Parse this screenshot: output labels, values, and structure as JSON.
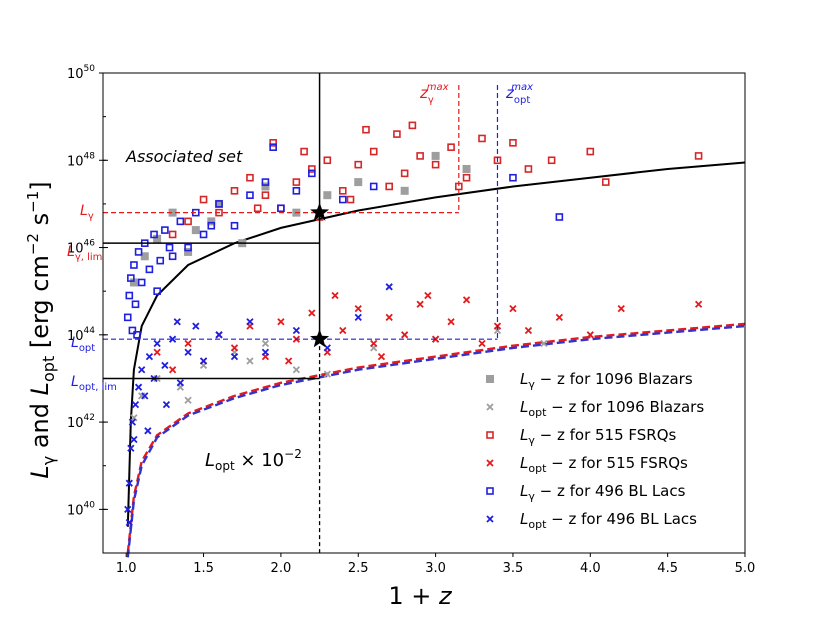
{
  "chart_data": {
    "type": "scatter",
    "title": "",
    "panel_label": "Associated set",
    "xlabel": "1 + z",
    "ylabel": "L_γ and L_opt [erg cm^-2 s^-1]",
    "xlim": [
      0.85,
      5.0
    ],
    "ylim_log10": [
      39.0,
      50.0
    ],
    "x_ticks": [
      "1.0",
      "1.5",
      "2.0",
      "2.5",
      "3.0",
      "3.5",
      "4.0",
      "4.5",
      "5.0"
    ],
    "y_ticks": [
      "10^40",
      "10^42",
      "10^44",
      "10^46",
      "10^48",
      "10^50"
    ],
    "legend_position": "lower-right",
    "legend": [
      "L_γ − z for 1096 Blazars",
      "L_opt − z for 1096 Blazars",
      "L_γ − z for 515 FSRQs",
      "L_opt − z for 515 FSRQs",
      "L_γ − z for 496 BL Lacs",
      "L_opt − z for 496 BL Lacs"
    ],
    "series": [
      {
        "name": "L_γ − z for 1096 Blazars",
        "marker": "square-filled",
        "color": "#9e9e9e",
        "points": [
          [
            1.05,
            45.2
          ],
          [
            1.12,
            45.8
          ],
          [
            1.2,
            46.2
          ],
          [
            1.3,
            46.8
          ],
          [
            1.45,
            46.4
          ],
          [
            1.6,
            47.0
          ],
          [
            1.75,
            46.1
          ],
          [
            1.9,
            47.4
          ],
          [
            2.1,
            46.8
          ],
          [
            2.3,
            47.2
          ],
          [
            2.5,
            47.5
          ],
          [
            2.8,
            47.3
          ],
          [
            3.0,
            48.1
          ],
          [
            3.2,
            47.8
          ],
          [
            1.4,
            45.9
          ],
          [
            1.55,
            46.6
          ]
        ]
      },
      {
        "name": "L_opt − z for 1096 Blazars",
        "marker": "x",
        "color": "#9e9e9e",
        "points": [
          [
            1.05,
            42.1
          ],
          [
            1.1,
            42.6
          ],
          [
            1.2,
            43.0
          ],
          [
            1.35,
            42.8
          ],
          [
            1.5,
            43.3
          ],
          [
            1.7,
            43.6
          ],
          [
            1.9,
            43.8
          ],
          [
            2.1,
            43.2
          ],
          [
            2.3,
            43.1
          ],
          [
            2.6,
            43.7
          ],
          [
            3.0,
            43.9
          ],
          [
            3.4,
            44.1
          ],
          [
            3.7,
            43.8
          ],
          [
            1.4,
            42.5
          ],
          [
            1.8,
            43.4
          ]
        ]
      },
      {
        "name": "L_γ − z for 515 FSRQs",
        "marker": "square-open",
        "color": "#d62728",
        "points": [
          [
            1.3,
            46.3
          ],
          [
            1.4,
            46.6
          ],
          [
            1.5,
            47.1
          ],
          [
            1.6,
            46.8
          ],
          [
            1.7,
            47.3
          ],
          [
            1.8,
            47.6
          ],
          [
            1.9,
            47.2
          ],
          [
            1.95,
            48.4
          ],
          [
            2.0,
            46.9
          ],
          [
            2.1,
            47.5
          ],
          [
            2.2,
            47.8
          ],
          [
            2.25,
            46.7
          ],
          [
            2.3,
            48.0
          ],
          [
            2.4,
            47.3
          ],
          [
            2.5,
            47.9
          ],
          [
            2.6,
            48.2
          ],
          [
            2.7,
            47.4
          ],
          [
            2.75,
            48.6
          ],
          [
            2.8,
            47.7
          ],
          [
            2.9,
            48.1
          ],
          [
            3.0,
            47.9
          ],
          [
            3.1,
            48.3
          ],
          [
            3.2,
            47.6
          ],
          [
            3.3,
            48.5
          ],
          [
            3.4,
            48.0
          ],
          [
            3.5,
            48.4
          ],
          [
            3.6,
            47.8
          ],
          [
            3.75,
            48.0
          ],
          [
            4.0,
            48.2
          ],
          [
            4.1,
            47.5
          ],
          [
            4.7,
            48.1
          ],
          [
            2.15,
            48.2
          ],
          [
            1.85,
            46.9
          ],
          [
            2.45,
            47.1
          ],
          [
            2.55,
            48.7
          ],
          [
            2.85,
            48.8
          ],
          [
            3.15,
            47.4
          ]
        ]
      },
      {
        "name": "L_opt − z for 515 FSRQs",
        "marker": "x",
        "color": "#e41a1c",
        "points": [
          [
            1.2,
            43.6
          ],
          [
            1.3,
            43.2
          ],
          [
            1.4,
            43.8
          ],
          [
            1.5,
            43.4
          ],
          [
            1.6,
            44.0
          ],
          [
            1.7,
            43.7
          ],
          [
            1.8,
            44.2
          ],
          [
            1.9,
            43.5
          ],
          [
            2.0,
            44.3
          ],
          [
            2.1,
            43.9
          ],
          [
            2.2,
            44.5
          ],
          [
            2.3,
            43.6
          ],
          [
            2.4,
            44.1
          ],
          [
            2.5,
            44.6
          ],
          [
            2.6,
            43.8
          ],
          [
            2.7,
            44.4
          ],
          [
            2.8,
            44.0
          ],
          [
            2.9,
            44.7
          ],
          [
            3.0,
            43.9
          ],
          [
            3.1,
            44.3
          ],
          [
            3.2,
            44.8
          ],
          [
            3.3,
            43.8
          ],
          [
            3.4,
            44.2
          ],
          [
            3.5,
            44.6
          ],
          [
            3.6,
            44.1
          ],
          [
            3.8,
            44.4
          ],
          [
            4.0,
            44.0
          ],
          [
            4.2,
            44.6
          ],
          [
            4.7,
            44.7
          ],
          [
            2.35,
            44.9
          ],
          [
            2.05,
            43.4
          ],
          [
            2.65,
            43.5
          ],
          [
            2.95,
            44.9
          ]
        ]
      },
      {
        "name": "L_γ − z for 496 BL Lacs",
        "marker": "square-open",
        "color": "#1f1fe0",
        "points": [
          [
            1.01,
            44.4
          ],
          [
            1.02,
            44.9
          ],
          [
            1.03,
            45.3
          ],
          [
            1.04,
            44.1
          ],
          [
            1.05,
            45.6
          ],
          [
            1.06,
            44.7
          ],
          [
            1.08,
            45.9
          ],
          [
            1.1,
            45.2
          ],
          [
            1.12,
            46.1
          ],
          [
            1.15,
            45.5
          ],
          [
            1.18,
            46.3
          ],
          [
            1.2,
            45.0
          ],
          [
            1.25,
            46.4
          ],
          [
            1.3,
            45.8
          ],
          [
            1.35,
            46.6
          ],
          [
            1.4,
            46.0
          ],
          [
            1.45,
            46.8
          ],
          [
            1.5,
            46.3
          ],
          [
            1.6,
            47.0
          ],
          [
            1.7,
            46.5
          ],
          [
            1.8,
            47.2
          ],
          [
            1.9,
            47.5
          ],
          [
            2.0,
            46.9
          ],
          [
            2.1,
            47.3
          ],
          [
            2.2,
            47.7
          ],
          [
            2.4,
            47.1
          ],
          [
            2.6,
            47.4
          ],
          [
            3.5,
            47.6
          ],
          [
            3.8,
            46.7
          ],
          [
            1.95,
            48.3
          ],
          [
            1.07,
            44.0
          ],
          [
            1.22,
            45.7
          ],
          [
            1.28,
            46.0
          ],
          [
            1.55,
            46.5
          ]
        ]
      },
      {
        "name": "L_opt − z for 496 BL Lacs",
        "marker": "x",
        "color": "#1f1fe0",
        "points": [
          [
            1.01,
            40.0
          ],
          [
            1.02,
            40.6
          ],
          [
            1.03,
            41.4
          ],
          [
            1.04,
            42.0
          ],
          [
            1.05,
            41.6
          ],
          [
            1.06,
            42.4
          ],
          [
            1.08,
            42.8
          ],
          [
            1.1,
            43.2
          ],
          [
            1.12,
            42.6
          ],
          [
            1.15,
            43.5
          ],
          [
            1.18,
            43.0
          ],
          [
            1.2,
            43.8
          ],
          [
            1.25,
            43.3
          ],
          [
            1.3,
            43.9
          ],
          [
            1.35,
            42.9
          ],
          [
            1.4,
            43.6
          ],
          [
            1.45,
            44.2
          ],
          [
            1.5,
            43.4
          ],
          [
            1.6,
            44.0
          ],
          [
            1.7,
            43.5
          ],
          [
            1.8,
            44.3
          ],
          [
            1.9,
            43.6
          ],
          [
            2.1,
            44.1
          ],
          [
            2.3,
            43.7
          ],
          [
            2.5,
            44.4
          ],
          [
            2.7,
            45.1
          ],
          [
            1.14,
            41.8
          ],
          [
            1.26,
            42.4
          ],
          [
            1.02,
            39.7
          ],
          [
            1.33,
            44.3
          ]
        ]
      }
    ],
    "curves": [
      {
        "name": "L_γ,lim",
        "color": "#000000",
        "style": "solid",
        "points": [
          [
            1.01,
            39.6
          ],
          [
            1.03,
            42.0
          ],
          [
            1.05,
            43.2
          ],
          [
            1.1,
            44.2
          ],
          [
            1.2,
            44.9
          ],
          [
            1.4,
            45.6
          ],
          [
            1.7,
            46.1
          ],
          [
            2.0,
            46.45
          ],
          [
            2.5,
            46.85
          ],
          [
            3.0,
            47.15
          ],
          [
            3.5,
            47.4
          ],
          [
            4.0,
            47.6
          ],
          [
            4.5,
            47.8
          ],
          [
            5.0,
            47.95
          ]
        ]
      },
      {
        "name": "L_opt × 10^-2 (FSRQ)",
        "color": "#e41a1c",
        "style": "dashed",
        "points": [
          [
            1.01,
            39.0
          ],
          [
            1.05,
            40.3
          ],
          [
            1.1,
            41.1
          ],
          [
            1.2,
            41.7
          ],
          [
            1.4,
            42.2
          ],
          [
            1.7,
            42.6
          ],
          [
            2.0,
            42.9
          ],
          [
            2.5,
            43.25
          ],
          [
            3.0,
            43.5
          ],
          [
            3.5,
            43.75
          ],
          [
            4.0,
            43.95
          ],
          [
            4.5,
            44.1
          ],
          [
            5.0,
            44.25
          ]
        ]
      },
      {
        "name": "L_opt × 10^-2 (BL Lac)",
        "color": "#3333cc",
        "style": "dashed",
        "points": [
          [
            1.01,
            38.9
          ],
          [
            1.05,
            40.2
          ],
          [
            1.1,
            41.0
          ],
          [
            1.2,
            41.65
          ],
          [
            1.4,
            42.15
          ],
          [
            1.7,
            42.55
          ],
          [
            2.0,
            42.85
          ],
          [
            2.5,
            43.2
          ],
          [
            3.0,
            43.45
          ],
          [
            3.5,
            43.7
          ],
          [
            4.0,
            43.9
          ],
          [
            4.5,
            44.05
          ],
          [
            5.0,
            44.2
          ]
        ]
      }
    ],
    "stars": [
      {
        "name": "L_γ star",
        "x": 2.25,
        "y": 46.8
      },
      {
        "name": "L_opt star",
        "x": 2.25,
        "y": 43.9
      }
    ],
    "reference_lines": {
      "x_event": 2.25,
      "L_gamma": {
        "label": "L_γ",
        "y": 46.8,
        "z_max": 3.15,
        "z_max_label": "z_γ^max",
        "color": "#e41a1c"
      },
      "L_gamma_lim": {
        "label": "L_γ,lim",
        "y": 46.1
      },
      "L_opt": {
        "label": "L_opt",
        "y": 43.9,
        "z_max": 3.4,
        "z_max_label": "z_opt^max",
        "color": "#1f1fe0"
      },
      "L_opt_lim": {
        "label": "L_opt,lim",
        "y": 43.0
      }
    },
    "annotations": {
      "lopt_scale": "L_opt × 10^-2"
    }
  }
}
